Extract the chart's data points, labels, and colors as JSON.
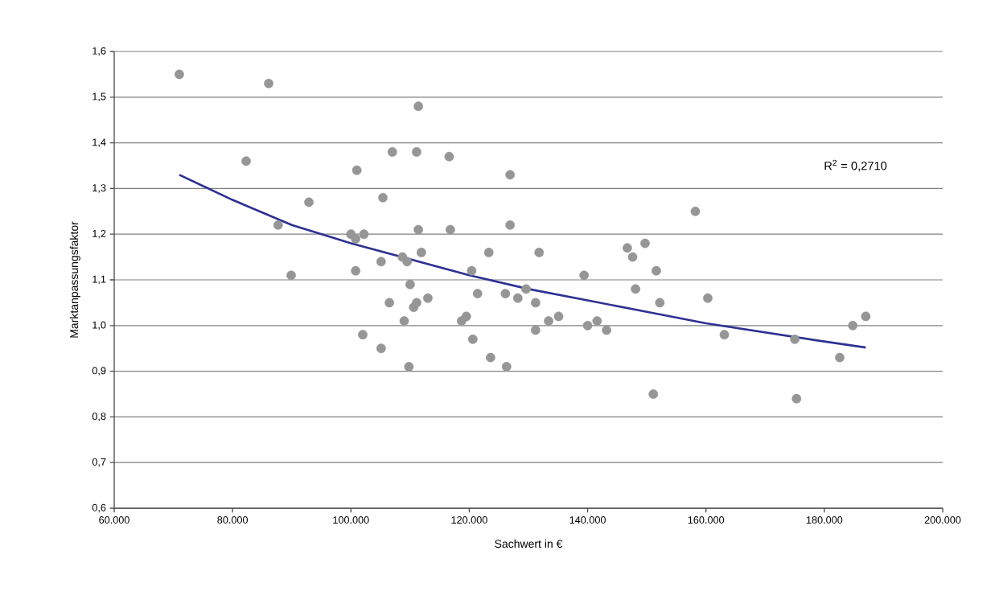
{
  "chart_data": {
    "type": "scatter",
    "xlabel": "Sachwert in €",
    "ylabel": "Marktanpassungsfaktor",
    "annotations": [
      "R$^{2}$ = 0,2710"
    ],
    "xlim": [
      60000,
      200000
    ],
    "ylim": [
      0.6,
      1.6
    ],
    "xticks": [
      {
        "value": 60000,
        "label": "60.000"
      },
      {
        "value": 80000,
        "label": "80.000"
      },
      {
        "value": 100000,
        "label": "100.000"
      },
      {
        "value": 120000,
        "label": "120.000"
      },
      {
        "value": 140000,
        "label": "140.000"
      },
      {
        "value": 160000,
        "label": "160.000"
      },
      {
        "value": 180000,
        "label": "180.000"
      },
      {
        "value": 200000,
        "label": "200.000"
      }
    ],
    "yticks": [
      {
        "value": 0.6,
        "label": "0,6"
      },
      {
        "value": 0.7,
        "label": "0,7"
      },
      {
        "value": 0.8,
        "label": "0,8"
      },
      {
        "value": 0.9,
        "label": "0,9"
      },
      {
        "value": 1.0,
        "label": "1,0"
      },
      {
        "value": 1.1,
        "label": "1,1"
      },
      {
        "value": 1.2,
        "label": "1,2"
      },
      {
        "value": 1.3,
        "label": "1,3"
      },
      {
        "value": 1.4,
        "label": "1,4"
      },
      {
        "value": 1.5,
        "label": "1,5"
      },
      {
        "value": 1.6,
        "label": "1,6"
      }
    ],
    "grid": "y",
    "marker": "circle",
    "series": [
      {
        "color": "#969696",
        "x": [
          71000,
          86100,
          82300,
          87700,
          89900,
          92900,
          100000,
          100800,
          102200,
          101000,
          100800,
          102000,
          105400,
          105100,
          105100,
          106500,
          107000,
          108700,
          109500,
          109000,
          110000,
          109800,
          110600,
          111100,
          111100,
          111400,
          111400,
          111900,
          113000,
          116600,
          116800,
          118700,
          119500,
          120400,
          120600,
          121400,
          123300,
          123600,
          126100,
          126300,
          126900,
          126900,
          128200,
          129600,
          131200,
          131200,
          131800,
          133400,
          135100,
          139400,
          140000,
          141600,
          143200,
          146700,
          147600,
          148100,
          149700,
          151100,
          151600,
          152200,
          158200,
          160300,
          163100,
          175000,
          175300,
          182600,
          184800,
          187000
        ],
        "values": [
          1.55,
          1.53,
          1.36,
          1.22,
          1.11,
          1.27,
          1.2,
          1.19,
          1.2,
          1.34,
          1.12,
          0.98,
          1.28,
          1.14,
          0.95,
          1.05,
          1.38,
          1.15,
          1.14,
          1.01,
          1.09,
          0.91,
          1.04,
          1.05,
          1.38,
          1.48,
          1.21,
          1.16,
          1.06,
          1.37,
          1.21,
          1.01,
          1.02,
          1.12,
          0.97,
          1.07,
          1.16,
          0.93,
          1.07,
          0.91,
          1.33,
          1.22,
          1.06,
          1.08,
          1.05,
          0.99,
          1.16,
          1.01,
          1.02,
          1.11,
          1.0,
          1.01,
          0.99,
          1.17,
          1.15,
          1.08,
          1.18,
          0.85,
          1.12,
          1.05,
          1.25,
          1.06,
          0.98,
          0.97,
          0.84,
          0.93,
          1.0,
          1.02
        ]
      },
      {
        "type": "line",
        "color": "#2e3192",
        "marker": "none",
        "x": [
          71000,
          80000,
          90000,
          100000,
          110000,
          120000,
          130000,
          140000,
          150000,
          160000,
          170000,
          180000,
          187000
        ],
        "values": [
          1.33,
          1.275,
          1.22,
          1.18,
          1.145,
          1.11,
          1.08,
          1.055,
          1.03,
          1.005,
          0.985,
          0.965,
          0.952
        ]
      }
    ]
  }
}
